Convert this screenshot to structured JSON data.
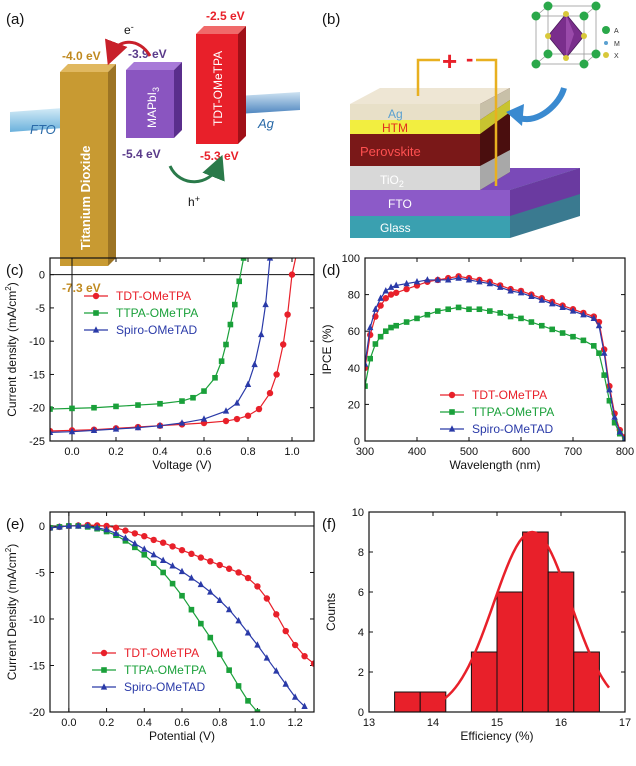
{
  "panel_labels": {
    "a": "(a)",
    "b": "(b)",
    "c": "(c)",
    "d": "(d)",
    "e": "(e)",
    "f": "(f)"
  },
  "energy_diagram": {
    "fto": "FTO",
    "ag": "Ag",
    "tio2": {
      "name": "Titanium Dioxide",
      "cb": "-4.0 eV",
      "vb": "-7.3 eV",
      "color": "#c89a32"
    },
    "mapbi3": {
      "name_main": "MAPbI",
      "name_sub": "3",
      "cb": "-3.9 eV",
      "vb": "-5.4 eV",
      "color": "#8a55c0"
    },
    "htm": {
      "name": "TDT-OMeTPA",
      "cb": "-2.5 eV",
      "vb": "-5.3 eV",
      "color": "#e8202a"
    },
    "electron": "e",
    "electron_sup": "-",
    "hole": "h",
    "hole_sup": "+"
  },
  "device": {
    "plus": "+",
    "minus": "-",
    "layers": [
      {
        "name": "Ag",
        "color": "#e8e0c8",
        "text_color": "#5aa0d0"
      },
      {
        "name": "HTM",
        "color": "#f2ee40",
        "text_color": "#e03020"
      },
      {
        "name": "Perovskite",
        "color": "#7a1818",
        "text_color": "#ff5050"
      },
      {
        "name": "TiO",
        "sub": "2",
        "color": "#d8d8d8",
        "text_color": "#ffffff"
      },
      {
        "name": "FTO",
        "color": "#8c5ac8",
        "text_color": "#ffffff"
      },
      {
        "name": "Glass",
        "color": "#3aa0b0",
        "text_color": "#ffffff"
      }
    ],
    "crystal_labels": [
      "A",
      "M",
      "X"
    ]
  },
  "chart_data": [
    {
      "id": "c",
      "type": "line",
      "xlabel": "Voltage (V)",
      "ylabel": "Current density (mA/cm",
      "ylabel_sup": "2",
      "ylabel_end": ")",
      "xlim": [
        -0.1,
        1.1
      ],
      "ylim": [
        -25,
        2.5
      ],
      "xticks": [
        0.0,
        0.2,
        0.4,
        0.6,
        0.8,
        1.0
      ],
      "xtick_labels": [
        "0.0",
        "0.2",
        "0.4",
        "0.6",
        "0.8",
        "1.0"
      ],
      "yticks": [
        -25,
        -20,
        -15,
        -10,
        -5,
        0
      ],
      "ytick_labels": [
        "-25",
        "-20",
        "-15",
        "-10",
        "-5",
        "0"
      ],
      "series": [
        {
          "name": "TDT-OMeTPA",
          "color": "#e8202a",
          "marker": "circle",
          "x": [
            -0.1,
            0.0,
            0.1,
            0.2,
            0.3,
            0.4,
            0.5,
            0.6,
            0.7,
            0.75,
            0.8,
            0.85,
            0.9,
            0.93,
            0.96,
            0.98,
            1.0,
            1.02
          ],
          "y": [
            -23.5,
            -23.4,
            -23.3,
            -23.1,
            -22.9,
            -22.7,
            -22.5,
            -22.3,
            -22.0,
            -21.7,
            -21.2,
            -20.2,
            -17.8,
            -15.0,
            -10.5,
            -6.0,
            0,
            3
          ]
        },
        {
          "name": "TTPA-OMeTPA",
          "color": "#1aa03a",
          "marker": "square",
          "x": [
            -0.1,
            0.0,
            0.1,
            0.2,
            0.3,
            0.4,
            0.5,
            0.55,
            0.6,
            0.65,
            0.68,
            0.7,
            0.72,
            0.74,
            0.76,
            0.78
          ],
          "y": [
            -20.2,
            -20.1,
            -20.0,
            -19.8,
            -19.6,
            -19.4,
            -19.0,
            -18.5,
            -17.5,
            -15.5,
            -13.0,
            -10.5,
            -7.5,
            -4.5,
            -1.0,
            2.5
          ]
        },
        {
          "name": "Spiro-OMeTAD",
          "color": "#2a3aa8",
          "marker": "triangle",
          "x": [
            -0.1,
            0.0,
            0.1,
            0.2,
            0.3,
            0.4,
            0.5,
            0.6,
            0.7,
            0.75,
            0.8,
            0.83,
            0.86,
            0.88,
            0.9
          ],
          "y": [
            -23.7,
            -23.6,
            -23.4,
            -23.2,
            -23.0,
            -22.7,
            -22.3,
            -21.7,
            -20.5,
            -19.3,
            -16.5,
            -13.5,
            -9.0,
            -4.5,
            2.5
          ]
        }
      ]
    },
    {
      "id": "d",
      "type": "line",
      "xlabel": "Wavelength (nm)",
      "ylabel": "IPCE (%)",
      "xlim": [
        300,
        800
      ],
      "ylim": [
        0,
        100
      ],
      "xticks": [
        300,
        400,
        500,
        600,
        700,
        800
      ],
      "xtick_labels": [
        "300",
        "400",
        "500",
        "600",
        "700",
        "800"
      ],
      "yticks": [
        0,
        20,
        40,
        60,
        80,
        100
      ],
      "ytick_labels": [
        "0",
        "20",
        "40",
        "60",
        "80",
        "100"
      ],
      "series": [
        {
          "name": "TDT-OMeTPA",
          "color": "#e8202a",
          "marker": "circle",
          "x": [
            300,
            310,
            320,
            330,
            340,
            350,
            360,
            380,
            400,
            420,
            440,
            460,
            480,
            500,
            520,
            540,
            560,
            580,
            600,
            620,
            640,
            660,
            680,
            700,
            720,
            740,
            750,
            760,
            770,
            780,
            790,
            800
          ],
          "y": [
            40,
            58,
            68,
            74,
            78,
            80,
            81,
            83,
            85,
            87,
            88,
            89,
            90,
            89,
            88,
            87,
            85,
            83,
            82,
            80,
            78,
            76,
            74,
            72,
            70,
            68,
            65,
            50,
            30,
            15,
            6,
            2
          ]
        },
        {
          "name": "TTPA-OMeTPA",
          "color": "#1aa03a",
          "marker": "square",
          "x": [
            300,
            310,
            320,
            330,
            340,
            350,
            360,
            380,
            400,
            420,
            440,
            460,
            480,
            500,
            520,
            540,
            560,
            580,
            600,
            620,
            640,
            660,
            680,
            700,
            720,
            740,
            750,
            760,
            770,
            780,
            790,
            800
          ],
          "y": [
            30,
            45,
            53,
            57,
            60,
            62,
            63,
            65,
            67,
            69,
            71,
            72,
            73,
            72,
            72,
            71,
            70,
            68,
            67,
            65,
            63,
            61,
            59,
            57,
            55,
            52,
            48,
            36,
            22,
            10,
            4,
            1
          ]
        },
        {
          "name": "Spiro-OMeTAD",
          "color": "#2a3aa8",
          "marker": "triangle",
          "x": [
            300,
            310,
            320,
            330,
            340,
            350,
            360,
            380,
            400,
            420,
            440,
            460,
            480,
            500,
            520,
            540,
            560,
            580,
            600,
            620,
            640,
            660,
            680,
            700,
            720,
            740,
            750,
            760,
            770,
            780,
            790,
            800
          ],
          "y": [
            42,
            62,
            72,
            78,
            82,
            84,
            85,
            86,
            87,
            88,
            88,
            88,
            89,
            88,
            87,
            86,
            84,
            82,
            81,
            79,
            77,
            75,
            73,
            71,
            69,
            67,
            63,
            48,
            28,
            13,
            5,
            1
          ]
        }
      ]
    },
    {
      "id": "e",
      "type": "line",
      "xlabel": "Potential (V)",
      "ylabel": "Current Density (mA/cm",
      "ylabel_sup": "2",
      "ylabel_end": ")",
      "xlim": [
        -0.1,
        1.3
      ],
      "ylim": [
        -20,
        1.5
      ],
      "xticks": [
        0.0,
        0.2,
        0.4,
        0.6,
        0.8,
        1.0,
        1.2
      ],
      "xtick_labels": [
        "0.0",
        "0.2",
        "0.4",
        "0.6",
        "0.8",
        "1.0",
        "1.2"
      ],
      "yticks": [
        -20,
        -15,
        -10,
        -5,
        0
      ],
      "ytick_labels": [
        "-20",
        "-15",
        "-10",
        "-5",
        "0"
      ],
      "series": [
        {
          "name": "TDT-OMeTPA",
          "color": "#e8202a",
          "marker": "circle",
          "x": [
            -0.1,
            -0.05,
            0.0,
            0.05,
            0.1,
            0.15,
            0.2,
            0.25,
            0.3,
            0.35,
            0.4,
            0.45,
            0.5,
            0.55,
            0.6,
            0.65,
            0.7,
            0.75,
            0.8,
            0.85,
            0.9,
            0.95,
            1.0,
            1.05,
            1.1,
            1.15,
            1.2,
            1.25,
            1.3
          ],
          "y": [
            -0.2,
            -0.1,
            0,
            0.05,
            0.1,
            0.05,
            0,
            -0.2,
            -0.5,
            -0.8,
            -1.1,
            -1.5,
            -1.8,
            -2.2,
            -2.6,
            -3.0,
            -3.4,
            -3.8,
            -4.2,
            -4.6,
            -5.0,
            -5.6,
            -6.5,
            -7.8,
            -9.5,
            -11.3,
            -12.8,
            -14.0,
            -14.8
          ]
        },
        {
          "name": "TTPA-OMeTPA",
          "color": "#1aa03a",
          "marker": "square",
          "x": [
            -0.1,
            -0.05,
            0.0,
            0.05,
            0.1,
            0.15,
            0.2,
            0.25,
            0.3,
            0.35,
            0.4,
            0.45,
            0.5,
            0.55,
            0.6,
            0.65,
            0.7,
            0.75,
            0.8,
            0.85,
            0.9,
            0.95,
            1.0
          ],
          "y": [
            -0.2,
            -0.1,
            0,
            0,
            -0.1,
            -0.3,
            -0.6,
            -1.0,
            -1.6,
            -2.3,
            -3.1,
            -4.0,
            -5.0,
            -6.2,
            -7.5,
            -9.0,
            -10.5,
            -12.0,
            -13.8,
            -15.5,
            -17.2,
            -18.8,
            -20
          ]
        },
        {
          "name": "Spiro-OMeTAD",
          "color": "#2a3aa8",
          "marker": "triangle",
          "x": [
            -0.1,
            -0.05,
            0.0,
            0.05,
            0.1,
            0.15,
            0.2,
            0.25,
            0.3,
            0.35,
            0.4,
            0.45,
            0.5,
            0.55,
            0.6,
            0.65,
            0.7,
            0.75,
            0.8,
            0.85,
            0.9,
            0.95,
            1.0,
            1.05,
            1.1,
            1.15,
            1.2,
            1.25
          ],
          "y": [
            -0.2,
            -0.1,
            0,
            0,
            0,
            -0.2,
            -0.4,
            -0.8,
            -1.3,
            -1.9,
            -2.5,
            -3.1,
            -3.7,
            -4.3,
            -4.9,
            -5.6,
            -6.3,
            -7.1,
            -8.0,
            -9.0,
            -10.2,
            -11.5,
            -12.8,
            -14.2,
            -15.6,
            -17.0,
            -18.4,
            -19.4
          ]
        }
      ]
    },
    {
      "id": "f",
      "type": "bar",
      "xlabel": "Efficiency (%)",
      "ylabel": "Counts",
      "xlim": [
        13,
        17
      ],
      "ylim": [
        0,
        10
      ],
      "xticks": [
        13,
        14,
        15,
        16,
        17
      ],
      "xtick_labels": [
        "13",
        "14",
        "15",
        "16",
        "17"
      ],
      "yticks": [
        0,
        2,
        4,
        6,
        8,
        10
      ],
      "ytick_labels": [
        "0",
        "2",
        "4",
        "6",
        "8",
        "10"
      ],
      "bar_color": "#e8202a",
      "bar_width": 0.4,
      "bin_centers": [
        13.6,
        14.0,
        14.4,
        14.8,
        15.2,
        15.6,
        16.0,
        16.4
      ],
      "values": [
        1,
        1,
        0,
        3,
        6,
        9,
        7,
        3
      ],
      "fit": {
        "mean": 15.55,
        "sd": 0.6,
        "amp": 9.0,
        "color": "#e8202a"
      }
    }
  ]
}
